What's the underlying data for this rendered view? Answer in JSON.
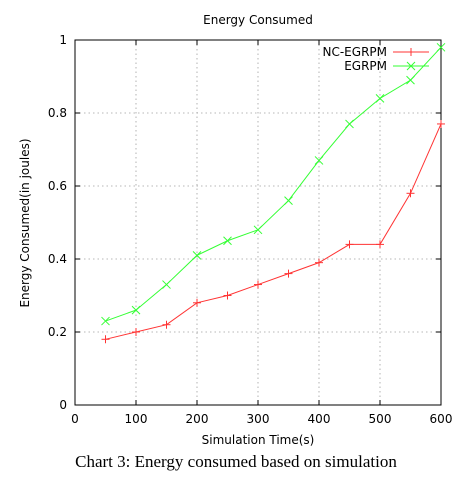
{
  "chart_data": {
    "type": "line",
    "title": "Energy Consumed",
    "xlabel": "Simulation Time(s)",
    "ylabel": "Energy Consumed(in joules)",
    "xlim": [
      0,
      600
    ],
    "ylim": [
      0,
      1
    ],
    "xticks": [
      0,
      100,
      200,
      300,
      400,
      500,
      600
    ],
    "yticks": [
      0,
      0.2,
      0.4,
      0.6,
      0.8,
      1
    ],
    "xtick_labels": [
      "0",
      "100",
      "200",
      "300",
      "400",
      "500",
      "600"
    ],
    "ytick_labels": [
      "0",
      "0.2",
      "0.4",
      "0.6",
      "0.8",
      "1"
    ],
    "grid": true,
    "legend_position": "top-right",
    "x": [
      50,
      100,
      150,
      200,
      250,
      300,
      350,
      400,
      450,
      500,
      550,
      600
    ],
    "series": [
      {
        "name": "NC-EGRPM",
        "color": "#ff3333",
        "marker": "plus",
        "values": [
          0.18,
          0.2,
          0.22,
          0.28,
          0.3,
          0.33,
          0.36,
          0.39,
          0.44,
          0.44,
          0.58,
          0.77
        ]
      },
      {
        "name": "EGRPM",
        "color": "#33ff33",
        "marker": "cross",
        "values": [
          0.23,
          0.26,
          0.33,
          0.41,
          0.45,
          0.48,
          0.56,
          0.67,
          0.77,
          0.84,
          0.89,
          0.98
        ]
      }
    ]
  },
  "caption": "Chart 3: Energy consumed based on simulation"
}
